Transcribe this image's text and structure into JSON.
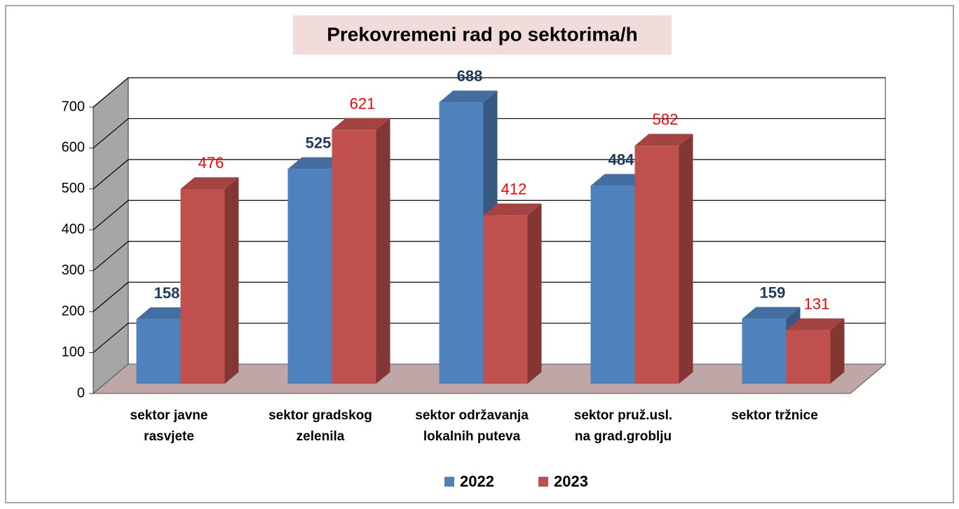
{
  "chart_data": {
    "type": "bar3d",
    "title": "Prekovremeni rad po sektorima/h",
    "categories": [
      [
        "sektor javne",
        "rasvjete"
      ],
      [
        "sektor gradskog",
        "zelenila"
      ],
      [
        "sektor održavanja",
        "lokalnih puteva"
      ],
      [
        "sektor pruž.usl.",
        "na grad.groblju"
      ],
      [
        "sektor tržnice"
      ]
    ],
    "series": [
      {
        "name": "2022",
        "color": "#4f81bd",
        "values": [
          158,
          525,
          688,
          484,
          159
        ]
      },
      {
        "name": "2023",
        "color": "#c0504d",
        "values": [
          476,
          621,
          412,
          582,
          131
        ]
      }
    ],
    "ylim": [
      0,
      700
    ],
    "yticks": [
      0,
      100,
      200,
      300,
      400,
      500,
      600,
      700
    ],
    "grid": true,
    "legend": "bottom"
  }
}
